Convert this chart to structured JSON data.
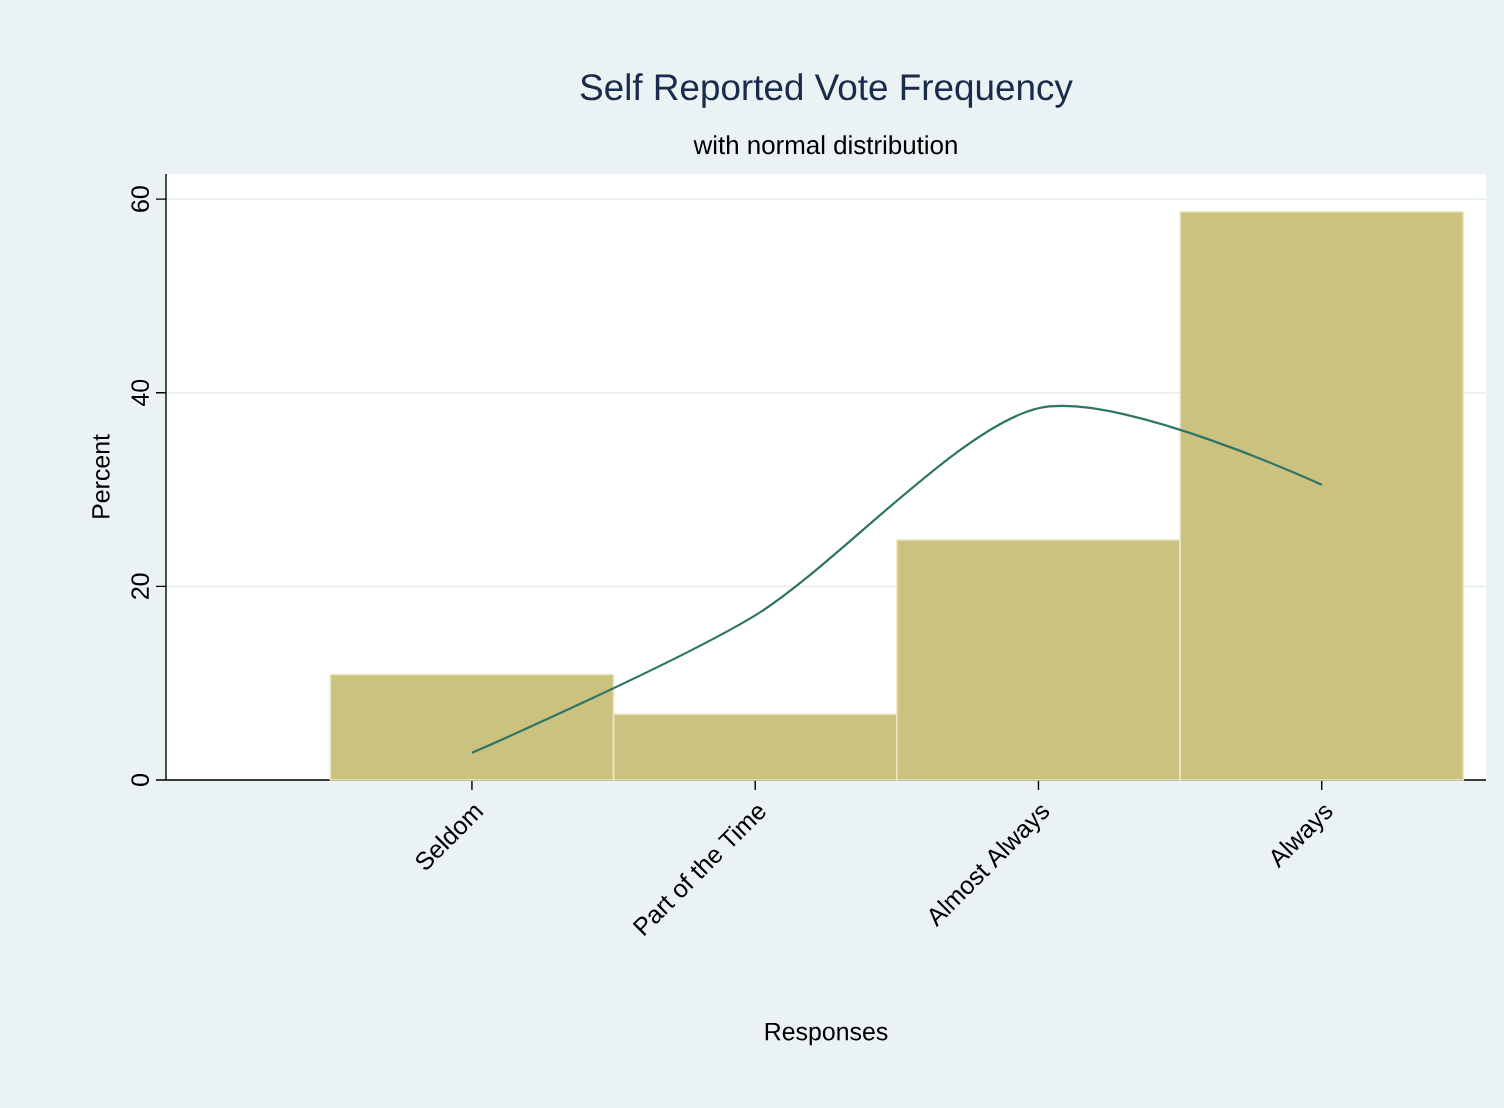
{
  "chart_data": {
    "type": "bar",
    "title": "Self Reported Vote Frequency",
    "subtitle": "with normal distribution",
    "xlabel": "Responses",
    "ylabel": "Percent",
    "categories": [
      "Seldom",
      "Part of the Time",
      "Almost Always",
      "Always"
    ],
    "ylim": [
      0,
      62.6
    ],
    "yticks": [
      0,
      20,
      40,
      60
    ],
    "grid": "y",
    "series": [
      {
        "values": [
          10.9,
          6.8,
          24.8,
          58.7
        ],
        "color": "#cbc280"
      },
      {
        "type": "line",
        "values": [
          2.8,
          17.0,
          38.4,
          30.5
        ],
        "color": "#2e7566"
      }
    ]
  }
}
